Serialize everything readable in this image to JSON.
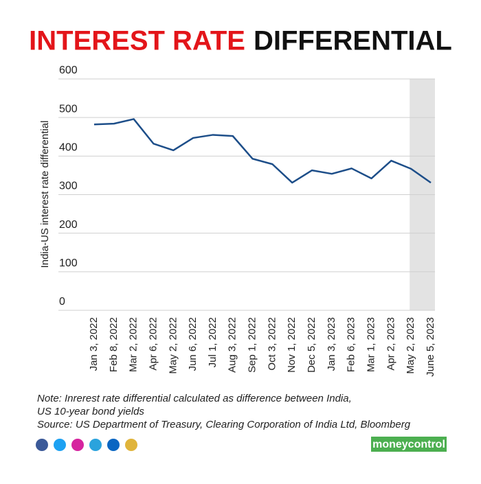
{
  "chart_data": {
    "type": "line",
    "title_parts": [
      "INTEREST RATE",
      "DIFFERENTIAL"
    ],
    "title_colors": [
      "#e3151a",
      "#111111"
    ],
    "y_label": "India-US interest rate differential",
    "categories": [
      "Jan 3, 2022",
      "Feb 8, 2022",
      "Mar 2, 2022",
      "Apr 6, 2022",
      "May 2, 2022",
      "Jun 6, 2022",
      "Jul 1, 2022",
      "Aug 3, 2022",
      "Sep 1, 2022",
      "Oct 3, 2022",
      "Nov 1, 2022",
      "Dec 5, 2022",
      "Jan 3, 2023",
      "Feb 6, 2023",
      "Mar 1, 2023",
      "Apr 2, 2023",
      "May 2, 2023",
      "June 5, 2023"
    ],
    "values": [
      482,
      484,
      496,
      432,
      415,
      447,
      455,
      452,
      393,
      379,
      331,
      363,
      354,
      368,
      342,
      388,
      367,
      331
    ],
    "color": "#1d4e89",
    "ylim": [
      0,
      600
    ],
    "yticks": [
      0,
      100,
      200,
      300,
      400,
      500,
      600
    ],
    "grid": true,
    "notes": [
      "Note: Inrerest rate differential calculated as difference between India,",
      "US 10-year bond yields",
      "Source: US Department of Treasury, Clearing Corporation of India Ltd, Bloomberg"
    ],
    "brand": "moneycontrol"
  }
}
